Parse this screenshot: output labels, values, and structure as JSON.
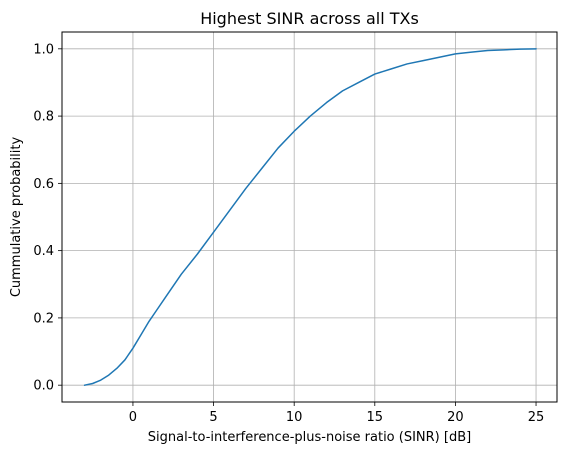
{
  "chart_data": {
    "type": "line",
    "title": "Highest SINR across all TXs",
    "xlabel": "Signal-to-interference-plus-noise ratio (SINR) [dB]",
    "ylabel": "Cummulative probability",
    "xlim": [
      -4.4,
      26.3
    ],
    "ylim": [
      -0.05,
      1.05
    ],
    "xticks": [
      0,
      5,
      10,
      15,
      20,
      25
    ],
    "yticks": [
      0.0,
      0.2,
      0.4,
      0.6,
      0.8,
      1.0
    ],
    "xtick_labels": [
      "0",
      "5",
      "10",
      "15",
      "20",
      "25"
    ],
    "ytick_labels": [
      "0.0",
      "0.2",
      "0.4",
      "0.6",
      "0.8",
      "1.0"
    ],
    "grid": true,
    "series": [
      {
        "color": "#1f77b4",
        "x": [
          -3.0,
          -2.5,
          -2.0,
          -1.5,
          -1.0,
          -0.5,
          0.0,
          0.5,
          1.0,
          1.5,
          2.0,
          3.0,
          4.0,
          5.0,
          6.0,
          7.0,
          8.0,
          9.0,
          10.0,
          11.0,
          12.0,
          13.0,
          14.0,
          15.0,
          16.0,
          17.0,
          18.0,
          19.0,
          20.0,
          21.0,
          22.0,
          23.0,
          24.0,
          25.0
        ],
        "y": [
          0.0,
          0.005,
          0.015,
          0.03,
          0.05,
          0.075,
          0.11,
          0.15,
          0.19,
          0.225,
          0.26,
          0.33,
          0.39,
          0.455,
          0.52,
          0.585,
          0.645,
          0.705,
          0.755,
          0.8,
          0.84,
          0.875,
          0.9,
          0.925,
          0.94,
          0.955,
          0.965,
          0.975,
          0.985,
          0.99,
          0.995,
          0.997,
          0.999,
          1.0
        ]
      }
    ]
  }
}
